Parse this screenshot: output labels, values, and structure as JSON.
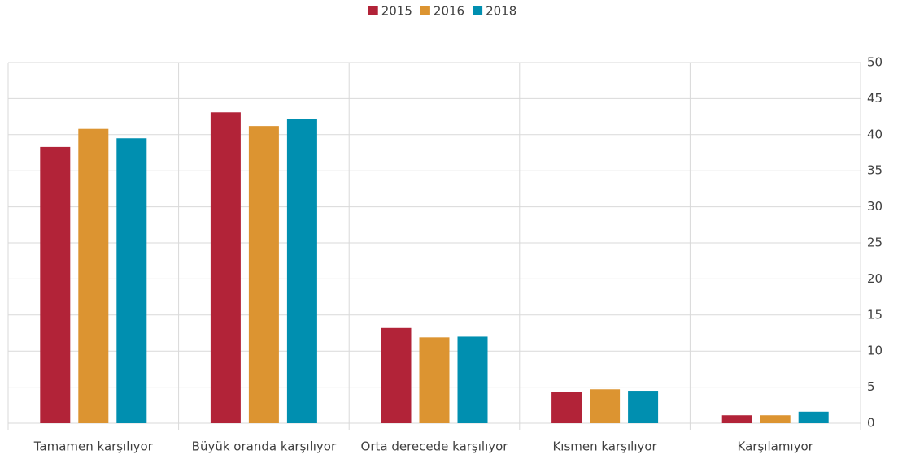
{
  "chart_data": {
    "type": "bar",
    "categories": [
      "Tamamen karşılıyor",
      "Büyük oranda karşılıyor",
      "Orta derecede karşılıyor",
      "Kısmen karşılıyor",
      "Karşılamıyor"
    ],
    "series": [
      {
        "name": "2015",
        "color": "#b22338",
        "values": [
          38.3,
          43.1,
          13.2,
          4.3,
          1.1
        ]
      },
      {
        "name": "2016",
        "color": "#dc9431",
        "values": [
          40.8,
          41.2,
          11.9,
          4.7,
          1.1
        ]
      },
      {
        "name": "2018",
        "color": "#008fb0",
        "values": [
          39.5,
          42.2,
          12.0,
          4.5,
          1.6
        ]
      }
    ],
    "ylim": [
      0,
      50
    ],
    "yticks": [
      0,
      5,
      10,
      15,
      20,
      25,
      30,
      35,
      40,
      45,
      50
    ],
    "grid": true,
    "legend": "top",
    "y_axis_side": "right"
  }
}
